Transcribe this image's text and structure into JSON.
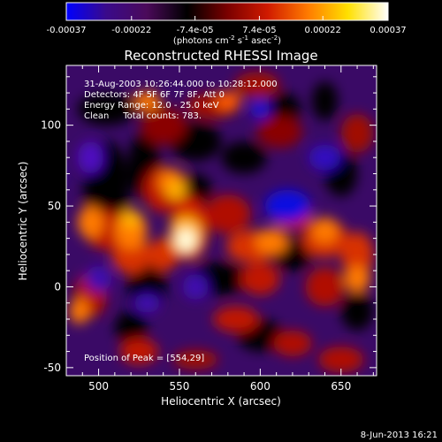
{
  "colorbar": {
    "tick_labels": [
      "-0.00037",
      "-0.00022",
      "-7.4e-05",
      "7.4e-05",
      "0.00022",
      "0.00037"
    ],
    "tick_values": [
      -0.00037,
      -0.00022,
      -7.4e-05,
      7.4e-05,
      0.00022,
      0.00037
    ],
    "range": [
      -0.00037,
      0.00037
    ],
    "units": "(photons cm",
    "units_exp1": "-2",
    "units_mid": " s",
    "units_exp2": "-1",
    "units_end": " asec",
    "units_exp3": "-2",
    "units_close": ")",
    "colors": [
      "#0000ff",
      "#3a0a8a",
      "#4b0a5a",
      "#000000",
      "#7a0000",
      "#d01a00",
      "#ff7a00",
      "#ffe000",
      "#ffffff"
    ]
  },
  "chart_data": {
    "type": "heatmap",
    "title": "Reconstructed RHESSI Image",
    "xlabel": "Heliocentric X (arcsec)",
    "ylabel": "Heliocentric Y (arcsec)",
    "xlim": [
      480,
      672
    ],
    "ylim": [
      -55,
      137
    ],
    "x_ticks": [
      500,
      550,
      600,
      650
    ],
    "y_ticks": [
      -50,
      0,
      50,
      100
    ],
    "info_lines": [
      "31-Aug-2003 10:26:44.000 to 10:28:12.000",
      "Detectors: 4F 5F 6F 7F 8F, Att 0",
      "Energy Range: 12.0 - 25.0 keV",
      "Clean     Total counts: 783."
    ],
    "peak_label": "Position of Peak = [554,29]",
    "peak": [
      554,
      29
    ]
  },
  "footer": {
    "date": "8-Jun-2013 16:21"
  }
}
